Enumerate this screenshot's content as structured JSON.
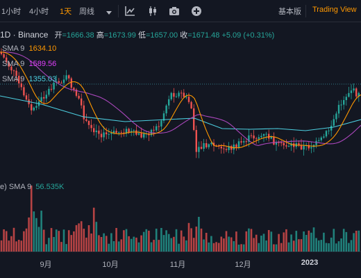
{
  "toolbar": {
    "intervals": [
      "1小时",
      "4小时",
      "1天",
      "周线"
    ],
    "active_interval": "1天",
    "basic_label": "基本版",
    "brand_label": "Trading View"
  },
  "legend": {
    "symbol": "1D · Binance",
    "open_label": "开",
    "open_value": "=1666.38",
    "high_label": "高",
    "high_value": "=1673.99",
    "low_label": "低",
    "low_value": "=1657.00",
    "close_label": "收",
    "close_value": "=1671.48",
    "change": "+5.09 (+0.31%)",
    "sma1_name": "SMA 9",
    "sma1_value": "1634.10",
    "sma1_color": "#ff9800",
    "sma2_name": "SMA 9",
    "sma2_value": "1589.56",
    "sma2_color": "#e040fb",
    "sma3_name": "SMA 9",
    "sma3_value": "1355.03",
    "sma3_color": "#4dd0e1",
    "vol_name": "e) SMA 9",
    "vol_value": "56.535K",
    "vol_color": "#26a69a"
  },
  "colors": {
    "up": "#26a69a",
    "down": "#ef5350",
    "bg": "#131722"
  },
  "x_axis": {
    "labels": [
      "9月",
      "10月",
      "11月",
      "12月",
      "2023"
    ]
  }
}
